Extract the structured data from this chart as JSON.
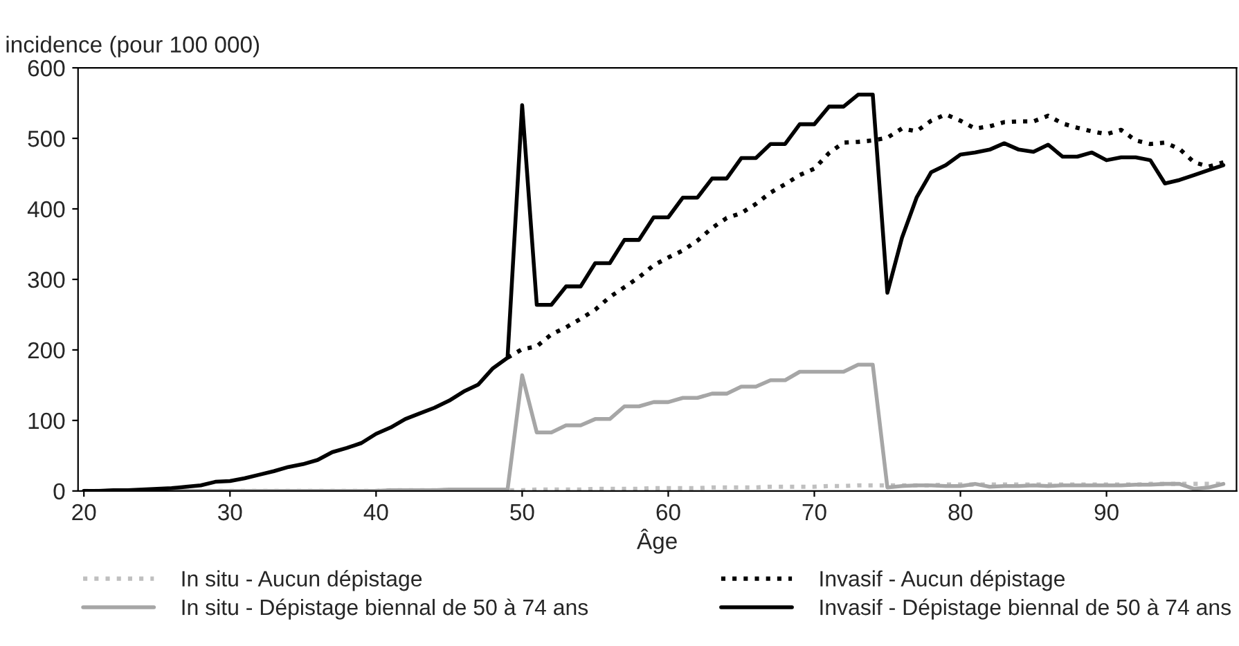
{
  "chart_data": {
    "type": "line",
    "ylabel": "incidence (pour 100 000)",
    "xlabel": "Âge",
    "x": [
      20,
      21,
      22,
      23,
      24,
      25,
      26,
      27,
      28,
      29,
      30,
      31,
      32,
      33,
      34,
      35,
      36,
      37,
      38,
      39,
      40,
      41,
      42,
      43,
      44,
      45,
      46,
      47,
      48,
      49,
      50,
      51,
      52,
      53,
      54,
      55,
      56,
      57,
      58,
      59,
      60,
      61,
      62,
      63,
      64,
      65,
      66,
      67,
      68,
      69,
      70,
      71,
      72,
      73,
      74,
      75,
      76,
      77,
      78,
      79,
      80,
      81,
      82,
      83,
      84,
      85,
      86,
      87,
      88,
      89,
      90,
      91,
      92,
      93,
      94,
      95,
      96,
      97,
      98
    ],
    "xlim": [
      19.6,
      98.9
    ],
    "xticks": [
      20,
      30,
      40,
      50,
      60,
      70,
      80,
      90
    ],
    "ylim": [
      0,
      600
    ],
    "yticks": [
      0,
      100,
      200,
      300,
      400,
      500,
      600
    ],
    "grid": false,
    "legend": "bottom",
    "series": [
      {
        "name": "In situ - Aucun dépistage",
        "color": "#bfbfbf",
        "line_style": "dotted",
        "values": [
          0,
          0,
          0,
          0,
          0,
          0,
          0,
          0,
          0,
          0,
          0,
          0,
          0,
          0,
          0,
          0,
          0,
          0,
          0,
          0,
          0,
          1,
          1,
          1,
          1,
          1,
          1,
          1,
          1,
          1,
          1,
          2,
          2,
          2,
          2,
          3,
          3,
          3,
          3,
          4,
          4,
          4,
          4,
          5,
          5,
          5,
          5,
          6,
          6,
          6,
          6,
          7,
          7,
          8,
          8,
          8,
          8,
          8,
          8,
          9,
          9,
          9,
          9,
          9,
          9,
          9,
          9,
          9,
          9,
          9,
          9,
          9,
          9,
          10,
          10,
          10,
          10,
          10,
          10
        ]
      },
      {
        "name": "In situ - Dépistage biennal de 50 à 74 ans",
        "color": "#a6a6a6",
        "line_style": "solid",
        "values": [
          0,
          0,
          0,
          0,
          0,
          0,
          0,
          0,
          0,
          0,
          0,
          0,
          0,
          0,
          0,
          0,
          0,
          0,
          0,
          0,
          0,
          1,
          1,
          1,
          1,
          2,
          2,
          2,
          2,
          2,
          164,
          83,
          83,
          93,
          93,
          102,
          102,
          120,
          120,
          126,
          126,
          132,
          132,
          138,
          138,
          148,
          148,
          157,
          157,
          169,
          169,
          169,
          169,
          179,
          179,
          5,
          7,
          8,
          8,
          7,
          7,
          10,
          6,
          7,
          7,
          8,
          7,
          8,
          8,
          8,
          8,
          8,
          9,
          9,
          10,
          10,
          3,
          5,
          10
        ]
      },
      {
        "name": "Invasif - Aucun dépistage",
        "color": "#000000",
        "line_style": "dotted",
        "values": [
          null,
          null,
          null,
          null,
          null,
          null,
          null,
          null,
          null,
          null,
          null,
          null,
          null,
          null,
          null,
          null,
          null,
          null,
          null,
          null,
          null,
          null,
          null,
          null,
          null,
          null,
          null,
          null,
          null,
          189,
          201,
          205,
          222,
          232,
          244,
          257,
          275,
          289,
          303,
          320,
          331,
          341,
          355,
          373,
          387,
          394,
          407,
          423,
          435,
          448,
          457,
          479,
          494,
          495,
          497,
          501,
          514,
          510,
          525,
          534,
          525,
          514,
          517,
          523,
          524,
          524,
          532,
          521,
          515,
          510,
          506,
          512,
          497,
          492,
          494,
          485,
          466,
          460,
          466
        ]
      },
      {
        "name": "Invasif - Dépistage biennal de 50 à 74 ans",
        "color": "#000000",
        "line_style": "solid",
        "values": [
          0,
          0,
          1,
          1,
          2,
          3,
          4,
          6,
          8,
          13,
          14,
          18,
          23,
          28,
          34,
          38,
          44,
          55,
          61,
          68,
          81,
          90,
          102,
          110,
          118,
          128,
          141,
          151,
          174,
          189,
          547,
          264,
          264,
          290,
          290,
          323,
          323,
          356,
          356,
          388,
          388,
          416,
          416,
          443,
          443,
          472,
          472,
          492,
          492,
          520,
          520,
          545,
          545,
          562,
          562,
          281,
          359,
          416,
          452,
          462,
          477,
          480,
          484,
          493,
          484,
          481,
          491,
          474,
          474,
          480,
          469,
          473,
          473,
          469,
          436,
          441,
          448,
          455,
          462
        ]
      }
    ]
  }
}
